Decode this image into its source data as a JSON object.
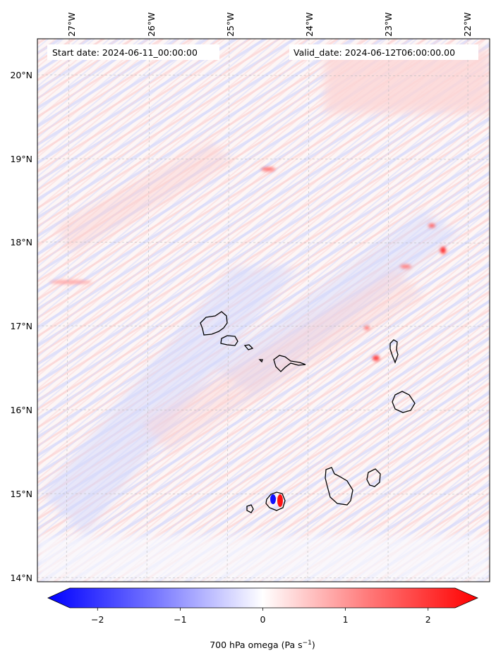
{
  "annotations": {
    "start_date": "Start date: 2024-06-11_00:00:00",
    "valid_date": "Valid_date: 2024-06-12T06:00:00.00"
  },
  "axes": {
    "longitude_labels": [
      "27°W",
      "26°W",
      "25°W",
      "24°W",
      "23°W",
      "22°W"
    ],
    "latitude_labels": [
      "20°N",
      "19°N",
      "18°N",
      "17°N",
      "16°N",
      "15°N",
      "14°N"
    ]
  },
  "colorbar": {
    "label_main": "700 hPa omega (Pa s",
    "label_exp": "−1",
    "label_end": ")",
    "tick_labels": [
      "−2",
      "−1",
      "0",
      "1",
      "2"
    ],
    "tick_values": [
      -2,
      -1,
      0,
      1,
      2
    ],
    "range": [
      -2.6,
      2.6
    ],
    "negative_color": "#0000ff",
    "zero_color": "#ffffff",
    "positive_color": "#ff0000"
  },
  "map": {
    "field": "700 hPa omega",
    "gridlines": true,
    "coastline_color": "#000000",
    "high_positive_spot_color": "#ff0000",
    "high_negative_spot_color": "#0000ff"
  }
}
